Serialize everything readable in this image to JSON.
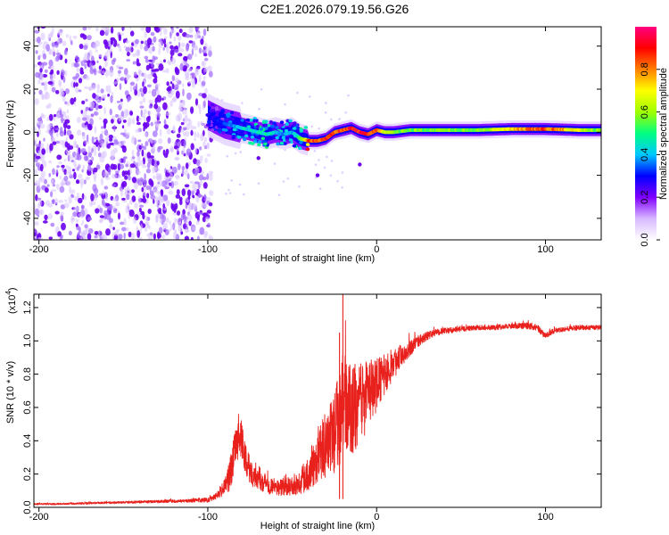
{
  "title": "C2E1.2026.079.19.56.G26",
  "chart_data": [
    {
      "type": "heatmap",
      "title": "C2E1.2026.079.19.56.G26",
      "xlabel": "Height of straight line (km)",
      "ylabel": "Frequency (Hz)",
      "xlim": [
        -203,
        133
      ],
      "ylim": [
        -50,
        49
      ],
      "x_ticks": [
        "-200",
        "-100",
        "0",
        "100"
      ],
      "y_ticks": [
        "-40",
        "-20",
        "0",
        "20",
        "40"
      ],
      "colorbar": {
        "label": "Normalized spectral amplitude",
        "range": [
          0.0,
          1.0
        ],
        "ticks": [
          "0.0",
          "0.2",
          "0.4",
          "0.6",
          "0.8"
        ],
        "colors": [
          "#ffffff",
          "#d8b8ff",
          "#7f00ff",
          "#0000ff",
          "#00c8ff",
          "#00ff80",
          "#a0ff00",
          "#ffff00",
          "#ff8000",
          "#ff0000",
          "#ff0080"
        ]
      },
      "noise_region_x": [
        -203,
        -100
      ],
      "signal_track": {
        "x": [
          -100,
          -95,
          -90,
          -85,
          -80,
          -75,
          -70,
          -65,
          -60,
          -55,
          -50,
          -45,
          -40,
          -35,
          -30,
          -25,
          -20,
          -15,
          -10,
          -5,
          0,
          5,
          10,
          20,
          40,
          60,
          80,
          100,
          120,
          133
        ],
        "freq": [
          8,
          6,
          4,
          3,
          2,
          1,
          0,
          -1,
          0,
          -1,
          0,
          -3,
          -4,
          -4,
          -3,
          0,
          1,
          2,
          0,
          -1,
          1,
          0,
          0,
          1,
          1,
          1,
          1.5,
          1.5,
          1,
          1
        ],
        "amp": [
          0.3,
          0.3,
          0.35,
          0.4,
          0.45,
          0.45,
          0.45,
          0.5,
          0.45,
          0.4,
          0.4,
          0.55,
          0.9,
          0.9,
          0.9,
          0.9,
          0.9,
          0.95,
          0.95,
          0.9,
          0.9,
          0.65,
          0.6,
          0.6,
          0.6,
          0.6,
          0.75,
          0.9,
          0.7,
          0.6
        ]
      }
    },
    {
      "type": "line",
      "xlabel": "Height of straight line (km)",
      "ylabel": "SNR (10 * v/v)",
      "y_multiplier": "(x10",
      "y_multiplier_exp": "4",
      "y_multiplier_close": ")",
      "xlim": [
        -203,
        133
      ],
      "ylim": [
        0,
        1.28
      ],
      "x_ticks": [
        "-200",
        "-100",
        "0",
        "100"
      ],
      "y_ticks": [
        "0.0",
        "0.2",
        "0.4",
        "0.6",
        "0.8",
        "1.0",
        "1.2"
      ],
      "series": [
        {
          "name": "SNR",
          "color": "#e8211d",
          "x": [
            -203,
            -190,
            -170,
            -150,
            -130,
            -110,
            -100,
            -95,
            -90,
            -87,
            -84,
            -82,
            -80,
            -78,
            -75,
            -70,
            -65,
            -60,
            -55,
            -50,
            -45,
            -40,
            -35,
            -30,
            -25,
            -22,
            -20,
            -15,
            -10,
            -5,
            0,
            5,
            10,
            15,
            20,
            25,
            30,
            35,
            40,
            50,
            60,
            70,
            80,
            90,
            95,
            100,
            105,
            110,
            120,
            133
          ],
          "y": [
            0.02,
            0.02,
            0.025,
            0.03,
            0.035,
            0.04,
            0.045,
            0.07,
            0.12,
            0.2,
            0.33,
            0.42,
            0.4,
            0.3,
            0.22,
            0.18,
            0.14,
            0.12,
            0.12,
            0.13,
            0.16,
            0.22,
            0.3,
            0.38,
            0.45,
            0.55,
            0.62,
            0.58,
            0.62,
            0.68,
            0.74,
            0.8,
            0.86,
            0.92,
            0.96,
            1.0,
            1.03,
            1.05,
            1.06,
            1.07,
            1.08,
            1.08,
            1.09,
            1.09,
            1.08,
            1.03,
            1.06,
            1.07,
            1.08,
            1.08
          ],
          "noise": [
            0.005,
            0.005,
            0.006,
            0.007,
            0.008,
            0.01,
            0.015,
            0.02,
            0.05,
            0.1,
            0.12,
            0.12,
            0.12,
            0.1,
            0.09,
            0.07,
            0.06,
            0.05,
            0.05,
            0.06,
            0.08,
            0.12,
            0.15,
            0.2,
            0.25,
            0.3,
            0.3,
            0.28,
            0.25,
            0.2,
            0.16,
            0.12,
            0.09,
            0.07,
            0.05,
            0.035,
            0.025,
            0.02,
            0.018,
            0.015,
            0.015,
            0.015,
            0.015,
            0.02,
            0.02,
            0.02,
            0.015,
            0.015,
            0.015,
            0.015
          ],
          "spikes": [
            {
              "x": -20,
              "y": 1.28
            },
            {
              "x": -22,
              "y": 1.05
            }
          ]
        }
      ]
    }
  ]
}
